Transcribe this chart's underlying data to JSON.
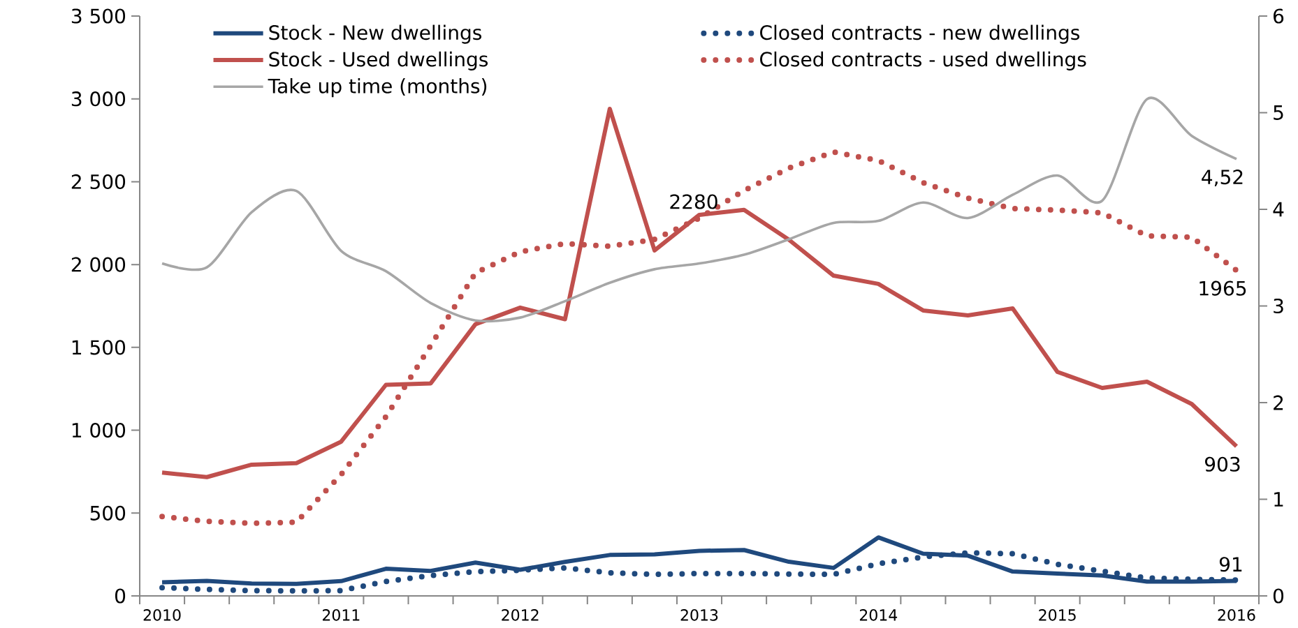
{
  "chart_data": {
    "type": "line",
    "categories": [
      "2010",
      null,
      null,
      null,
      "2011",
      null,
      null,
      null,
      "2012",
      null,
      null,
      null,
      "2013",
      null,
      null,
      null,
      "2014",
      null,
      null,
      null,
      "2015",
      null,
      null,
      null,
      "2016"
    ],
    "ylim": [
      0,
      3500
    ],
    "yticks": [
      0,
      500,
      {
        "value": 1000,
        "label": "1 000"
      },
      {
        "value": 1500,
        "label": "1 500"
      },
      {
        "value": 2000,
        "label": "2 000"
      },
      {
        "value": 2500,
        "label": "2 500"
      },
      {
        "value": 3000,
        "label": "3 000"
      },
      {
        "value": 3500,
        "label": "3 500"
      }
    ],
    "y2lim": [
      0,
      6
    ],
    "y2ticks": [
      0,
      1,
      2,
      3,
      4,
      5,
      6
    ],
    "legend": "top",
    "marker": "none",
    "series": [
      {
        "name": "Stock - New dwellings",
        "color": "#1f497d",
        "line_style": "solid",
        "values": [
          82,
          91,
          75,
          73,
          89,
          164,
          151,
          201,
          158,
          205,
          247,
          251,
          272,
          277,
          206,
          169,
          353,
          255,
          243,
          147,
          135,
          123,
          86,
          86,
          91
        ],
        "value_labels": [
          null,
          null,
          null,
          null,
          null,
          null,
          null,
          null,
          null,
          null,
          null,
          null,
          null,
          null,
          null,
          null,
          null,
          null,
          null,
          null,
          null,
          null,
          null,
          null,
          "91"
        ]
      },
      {
        "name": "Closed contracts - new dwellings",
        "color": "#1f497d",
        "line_style": "dotted",
        "values": [
          50,
          39,
          32,
          30,
          32,
          87,
          123,
          146,
          155,
          169,
          139,
          130,
          135,
          135,
          132,
          130,
          194,
          235,
          260,
          255,
          191,
          149,
          108,
          100,
          96
        ]
      },
      {
        "name": "Stock - Used dwellings",
        "color": "#c0504d",
        "line_style": "solid",
        "values": [
          744,
          717,
          792,
          801,
          931,
          1274,
          1283,
          1640,
          1740,
          1670,
          2940,
          2085,
          2300,
          2330,
          2150,
          1933,
          1883,
          1723,
          1693,
          1735,
          1352,
          1255,
          1293,
          1158,
          903
        ],
        "value_labels": [
          null,
          null,
          null,
          null,
          null,
          null,
          null,
          null,
          null,
          null,
          null,
          null,
          null,
          null,
          null,
          null,
          null,
          null,
          null,
          null,
          null,
          null,
          null,
          null,
          "903"
        ]
      },
      {
        "name": "Closed contracts - used dwellings",
        "color": "#c0504d",
        "line_style": "dotted",
        "values": [
          479,
          450,
          438,
          445,
          733,
          1082,
          1511,
          1950,
          2077,
          2127,
          2110,
          2152,
          2280,
          2447,
          2582,
          2679,
          2628,
          2494,
          2401,
          2338,
          2329,
          2312,
          2173,
          2165,
          1965
        ],
        "value_labels": [
          null,
          null,
          null,
          null,
          null,
          null,
          null,
          null,
          null,
          null,
          null,
          null,
          "2280",
          null,
          null,
          null,
          null,
          null,
          null,
          null,
          null,
          null,
          null,
          null,
          "1965"
        ]
      },
      {
        "name": "Take up time  (months)",
        "color": "#a6a6a6",
        "line_style": "solid",
        "axis": "y2",
        "values": [
          3.44,
          3.4,
          3.97,
          4.19,
          3.57,
          3.36,
          3.03,
          2.85,
          2.88,
          3.05,
          3.24,
          3.38,
          3.44,
          3.53,
          3.69,
          3.86,
          3.88,
          4.07,
          3.91,
          4.15,
          4.35,
          4.09,
          5.14,
          4.76,
          4.52
        ],
        "value_labels": [
          null,
          null,
          null,
          null,
          null,
          null,
          null,
          null,
          null,
          null,
          null,
          null,
          null,
          null,
          null,
          null,
          null,
          null,
          null,
          null,
          null,
          null,
          null,
          null,
          "4,52"
        ]
      }
    ]
  }
}
